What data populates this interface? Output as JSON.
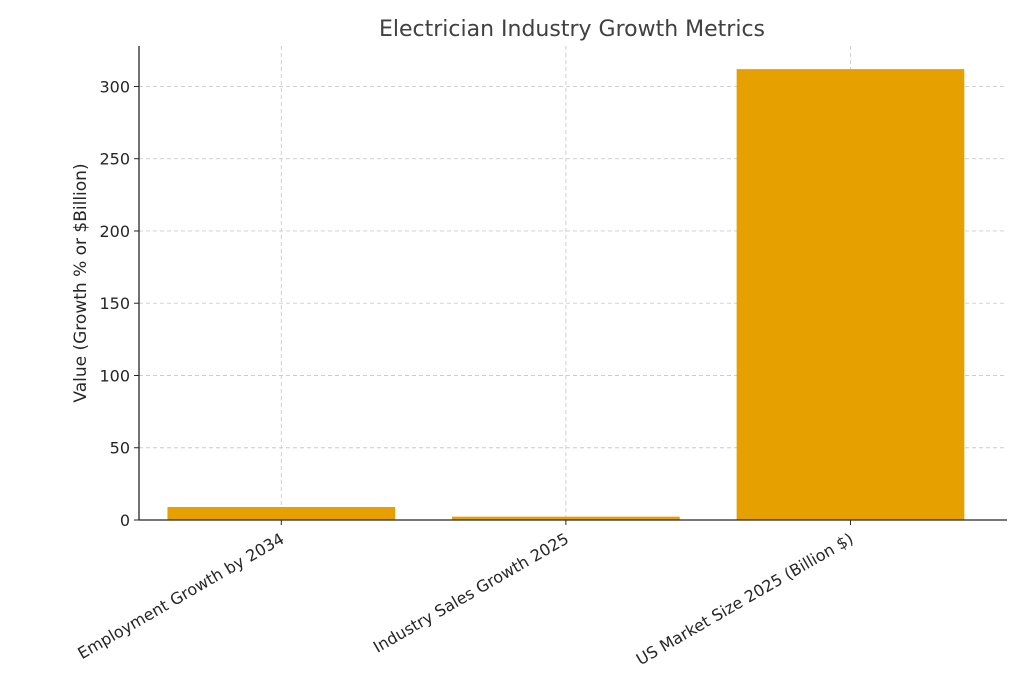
{
  "chart_data": {
    "type": "bar",
    "title": "Electrician Industry Growth Metrics",
    "xlabel": "",
    "ylabel": "Value (Growth % or $Billion)",
    "categories": [
      "Employment Growth by 2034",
      "Industry Sales Growth 2025",
      "US Market Size 2025 (Billion $)"
    ],
    "values": [
      9,
      2.3,
      312
    ],
    "ylim": [
      0,
      328
    ],
    "yticks": [
      0,
      50,
      100,
      150,
      200,
      250,
      300
    ],
    "grid": true,
    "bar_color": "#E6A000"
  }
}
